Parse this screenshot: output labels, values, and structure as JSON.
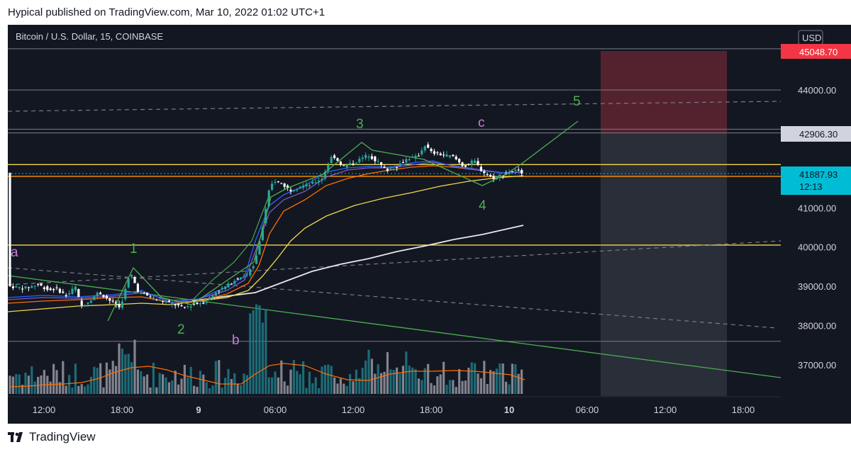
{
  "header": {
    "published": "Hypical published on TradingView.com, Mar 10, 2022 01:02 UTC+1"
  },
  "chart": {
    "symbol": "Bitcoin / U.S. Dollar, 15, COINBASE",
    "currency": "USD",
    "price_labels": {
      "stop": "45048.70",
      "target": "42906.30",
      "last": "41887.93",
      "countdown": "12:13"
    },
    "wave_labels": [
      "a",
      "1",
      "2",
      "b",
      "3",
      "c",
      "4",
      "5"
    ]
  },
  "chart_data": {
    "type": "candlestick",
    "x_ticks": [
      "12:00",
      "18:00",
      "9",
      "06:00",
      "12:00",
      "18:00",
      "10",
      "06:00",
      "12:00",
      "18:00"
    ],
    "y_ticks": [
      37000,
      38000,
      39000,
      40000,
      41000,
      44000
    ],
    "y_range": [
      36200,
      45900
    ],
    "horizontal_levels": [
      45048.7,
      44000,
      43000,
      42906.3,
      42100,
      41900,
      41800,
      40050,
      37600
    ],
    "last_price": 41887.93,
    "elliott_waves": [
      {
        "label": "a",
        "price": 39900
      },
      {
        "label": "1",
        "price": 39500
      },
      {
        "label": "2",
        "price": 38200
      },
      {
        "label": "b",
        "price": 37600
      },
      {
        "label": "3",
        "price": 42850
      },
      {
        "label": "c",
        "price": 42850
      },
      {
        "label": "4",
        "price": 41550
      },
      {
        "label": "5",
        "price": 43200
      }
    ],
    "position_box": {
      "stop": 45048.7,
      "entry": 42906.3
    }
  },
  "brand": {
    "name": "TradingView"
  },
  "colors": {
    "bg": "#131722",
    "up": "#26a69a",
    "down": "#ffffff",
    "wave": "#4caf50",
    "purple": "#c77dd9",
    "yellow": "#f0d848",
    "cyan": "#00bcd4",
    "red": "#f23645"
  }
}
